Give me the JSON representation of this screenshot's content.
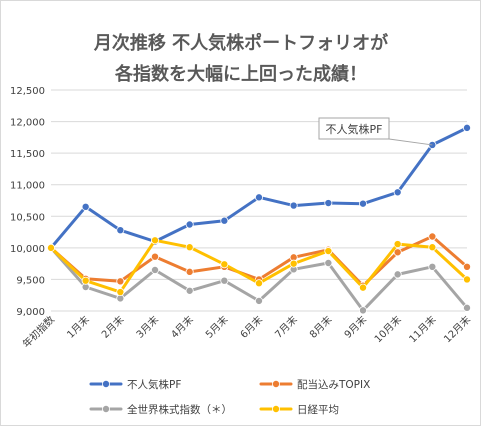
{
  "chart_data": {
    "type": "line",
    "title_lines": [
      "月次推移 不人気株ポートフォリオが",
      "各指数を大幅に上回った成績！"
    ],
    "categories": [
      "年初指数",
      "1月末",
      "2月末",
      "3月末",
      "4月末",
      "5月末",
      "6月末",
      "7月末",
      "8月末",
      "9月末",
      "10月末",
      "11月末",
      "12月末"
    ],
    "ylim": [
      9000,
      12500
    ],
    "yticks": [
      9000,
      9500,
      10000,
      10500,
      11000,
      11500,
      12000,
      12500
    ],
    "ytick_labels": [
      "9,000",
      "9,500",
      "10,000",
      "10,500",
      "11,000",
      "11,500",
      "12,000",
      "12,500"
    ],
    "grid": true,
    "legend_position": "bottom",
    "series": [
      {
        "name": "不人気株PF",
        "color": "#4472c4",
        "marker_color": "#4472c4",
        "zorder": 1,
        "values": [
          10000,
          10650,
          10280,
          10100,
          10370,
          10430,
          10800,
          10670,
          10710,
          10700,
          10880,
          11630,
          11900
        ]
      },
      {
        "name": "配当込みTOPIX",
        "color": "#ed7d31",
        "marker_color": "#ed7d31",
        "zorder": 2,
        "values": [
          10000,
          9510,
          9470,
          9860,
          9620,
          9700,
          9500,
          9850,
          9970,
          9400,
          9930,
          10180,
          9700
        ]
      },
      {
        "name": "全世界株式指数（＊）",
        "color": "#a5a5a5",
        "marker_color": "#a5a5a5",
        "zorder": 3,
        "values": [
          10000,
          9380,
          9200,
          9650,
          9320,
          9480,
          9160,
          9660,
          9760,
          9010,
          9580,
          9700,
          9050
        ]
      },
      {
        "name": "日経平均",
        "color": "#ffc000",
        "marker_color": "#ffc000",
        "zorder": 4,
        "values": [
          10000,
          9480,
          9300,
          10120,
          10010,
          9740,
          9440,
          9750,
          9950,
          9370,
          10060,
          10010,
          9500
        ]
      }
    ],
    "annotation": {
      "text": "不人気株PF",
      "series_index": 0,
      "point_index": 11
    }
  }
}
